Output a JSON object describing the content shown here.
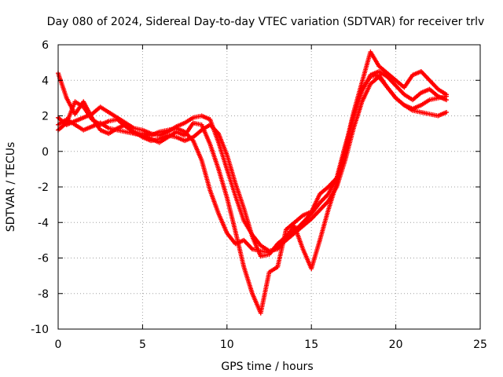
{
  "chart_data": {
    "type": "scatter",
    "title": "Day 080 of 2024, Sidereal Day-to-day VTEC variation (SDTVAR) for receiver trlv",
    "xlabel": "GPS time / hours",
    "ylabel": "SDTVAR / TECUs",
    "xlim": [
      0,
      25
    ],
    "ylim": [
      -10,
      6
    ],
    "xticks": [
      0,
      5,
      10,
      15,
      20,
      25
    ],
    "yticks": [
      -10,
      -8,
      -6,
      -4,
      -2,
      0,
      2,
      4,
      6
    ],
    "grid": true,
    "marker": "plus",
    "color": "#ff0000",
    "series": [
      {
        "x": [
          0.0,
          0.5,
          1.0,
          1.5,
          2.0,
          2.5,
          3.0,
          3.5,
          4.0,
          4.5,
          5.0,
          5.5,
          6.0,
          6.5,
          7.0,
          7.5,
          8.0,
          8.5,
          9.0,
          9.5,
          10.0,
          10.5,
          11.0,
          11.5,
          12.0,
          12.5,
          13.0,
          13.5,
          14.0,
          14.5,
          15.0,
          15.5,
          16.0,
          16.5,
          17.0,
          17.5,
          18.0,
          18.5,
          19.0,
          19.5,
          20.0,
          20.5,
          21.0,
          21.5,
          22.0,
          22.5,
          23.0
        ],
        "y": [
          4.4,
          3.0,
          2.1,
          2.8,
          1.9,
          1.2,
          1.0,
          1.3,
          1.5,
          1.0,
          0.9,
          0.7,
          0.5,
          0.8,
          1.1,
          0.9,
          1.6,
          1.5,
          0.4,
          -1.0,
          -2.6,
          -4.5,
          -6.5,
          -8.0,
          -9.1,
          -6.8,
          -6.5,
          -4.4,
          -4.0,
          -3.6,
          -3.4,
          -2.4,
          -2.0,
          -1.5,
          0.0,
          2.0,
          3.5,
          4.2,
          4.3,
          3.6,
          3.0,
          2.6,
          2.4,
          2.6,
          2.9,
          3.0,
          3.1
        ]
      },
      {
        "x": [
          0.0,
          0.5,
          1.0,
          1.5,
          2.0,
          2.5,
          3.0,
          3.5,
          4.0,
          4.5,
          5.0,
          5.5,
          6.0,
          6.5,
          7.0,
          7.5,
          8.0,
          8.5,
          9.0,
          9.5,
          10.0,
          10.5,
          11.0,
          11.5,
          12.0,
          12.5,
          13.0,
          13.5,
          14.0,
          14.5,
          15.0,
          15.5,
          16.0,
          16.5,
          17.0,
          17.5,
          18.0,
          18.5,
          19.0,
          19.5,
          20.0,
          20.5,
          21.0,
          21.5,
          22.0,
          22.5,
          23.0
        ],
        "y": [
          1.5,
          1.8,
          1.5,
          1.2,
          1.4,
          1.6,
          1.3,
          1.2,
          1.1,
          1.0,
          1.0,
          0.9,
          1.1,
          1.2,
          1.3,
          1.1,
          0.6,
          -0.5,
          -2.2,
          -3.5,
          -4.6,
          -5.2,
          -5.0,
          -5.5,
          -5.6,
          -5.7,
          -5.4,
          -5.0,
          -4.6,
          -4.2,
          -3.8,
          -3.3,
          -2.8,
          -2.0,
          -0.5,
          1.3,
          2.8,
          3.8,
          4.2,
          3.6,
          3.0,
          2.6,
          2.3,
          2.2,
          2.1,
          2.0,
          2.2
        ]
      },
      {
        "x": [
          0.0,
          0.5,
          1.0,
          1.5,
          2.0,
          2.5,
          3.0,
          3.5,
          4.0,
          4.5,
          5.0,
          5.5,
          6.0,
          6.5,
          7.0,
          7.5,
          8.0,
          8.5,
          9.0,
          9.5,
          10.0,
          10.5,
          11.0,
          11.5,
          12.0,
          12.5,
          13.0,
          13.5,
          14.0,
          14.5,
          15.0,
          15.5,
          16.0,
          16.5,
          17.0,
          17.5,
          18.0,
          18.5,
          19.0,
          19.5,
          20.0,
          20.5,
          21.0,
          21.5,
          22.0,
          22.5,
          23.0
        ],
        "y": [
          1.9,
          1.5,
          1.7,
          1.9,
          2.1,
          2.5,
          2.2,
          1.9,
          1.6,
          1.3,
          1.2,
          1.0,
          0.9,
          1.1,
          1.4,
          1.6,
          1.9,
          2.0,
          1.8,
          0.5,
          -1.0,
          -2.5,
          -3.9,
          -4.7,
          -5.3,
          -5.6,
          -5.5,
          -4.9,
          -4.5,
          -4.0,
          -3.5,
          -2.9,
          -2.4,
          -1.5,
          0.3,
          2.0,
          3.4,
          4.3,
          4.5,
          4.2,
          3.7,
          3.2,
          2.9,
          3.3,
          3.5,
          3.1,
          2.9
        ]
      },
      {
        "x": [
          0.0,
          0.5,
          1.0,
          1.5,
          2.0,
          2.5,
          3.0,
          3.5,
          4.0,
          4.5,
          5.0,
          5.5,
          6.0,
          6.5,
          7.0,
          7.5,
          8.0,
          8.5,
          9.0,
          9.5,
          10.0,
          10.5,
          11.0,
          11.5,
          12.0,
          12.5,
          13.0,
          13.5,
          14.0,
          14.5,
          15.0,
          15.5,
          16.0,
          16.5,
          17.0,
          17.5,
          18.0,
          18.5,
          19.0,
          19.5,
          20.0,
          20.5,
          21.0,
          21.5,
          22.0,
          22.5,
          23.0
        ],
        "y": [
          1.2,
          1.6,
          2.8,
          2.5,
          1.8,
          1.5,
          1.7,
          1.8,
          1.4,
          1.1,
          0.8,
          0.6,
          0.7,
          0.9,
          0.8,
          0.6,
          0.8,
          1.2,
          1.5,
          1.0,
          -0.2,
          -1.8,
          -3.2,
          -4.8,
          -5.9,
          -5.8,
          -5.2,
          -4.8,
          -4.2,
          -5.5,
          -6.6,
          -5.0,
          -3.3,
          -1.8,
          0.2,
          2.2,
          3.9,
          5.6,
          4.8,
          4.4,
          4.0,
          3.6,
          4.3,
          4.5,
          4.0,
          3.5,
          3.2
        ]
      }
    ]
  }
}
